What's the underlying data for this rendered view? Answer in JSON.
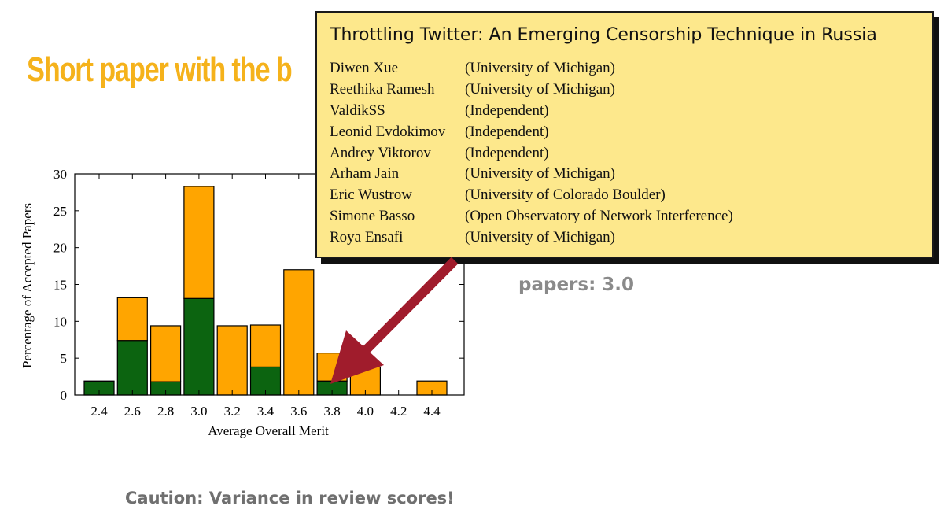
{
  "slide": {
    "title_visible": "Short paper with the b",
    "side_text": "papers: 3.0",
    "caption": "Caution: Variance in review scores!"
  },
  "callout": {
    "title": "Throttling Twitter: An Emerging Censorship Technique in Russia",
    "authors": [
      {
        "name": "Diwen Xue",
        "affiliation": "(University of Michigan)"
      },
      {
        "name": "Reethika Ramesh",
        "affiliation": "(University of Michigan)"
      },
      {
        "name": "ValdikSS",
        "affiliation": "(Independent)"
      },
      {
        "name": "Leonid Evdokimov",
        "affiliation": "(Independent)"
      },
      {
        "name": "Andrey Viktorov",
        "affiliation": "(Independent)"
      },
      {
        "name": "Arham Jain",
        "affiliation": "(University of Michigan)"
      },
      {
        "name": "Eric Wustrow",
        "affiliation": "(University of Colorado Boulder)"
      },
      {
        "name": "Simone Basso",
        "affiliation": "(Open Observatory of Network Interference)"
      },
      {
        "name": "Roya Ensafi",
        "affiliation": "(University of Michigan)"
      }
    ],
    "background_color": "#fde88c",
    "arrow_color": "#a01c2c"
  },
  "chart_data": {
    "type": "bar",
    "stacked": true,
    "xlabel": "Average Overall Merit",
    "ylabel": "Percentage of Accepted Papers",
    "ylim": [
      0,
      30
    ],
    "yticks": [
      0,
      5,
      10,
      15,
      20,
      25,
      30
    ],
    "categories": [
      "2.4",
      "2.6",
      "2.8",
      "3.0",
      "3.2",
      "3.4",
      "3.6",
      "3.8",
      "4.0",
      "4.2",
      "4.4"
    ],
    "series": [
      {
        "color": "#0c6410",
        "values": [
          1.8,
          7.4,
          1.8,
          13.1,
          0,
          3.8,
          0,
          1.9,
          0,
          0,
          0
        ]
      },
      {
        "color": "#ffa500",
        "values": [
          0.1,
          5.8,
          7.6,
          15.2,
          9.4,
          5.7,
          17.0,
          3.8,
          3.8,
          0,
          1.9
        ]
      }
    ],
    "annotation_arrow_target": "3.8"
  }
}
